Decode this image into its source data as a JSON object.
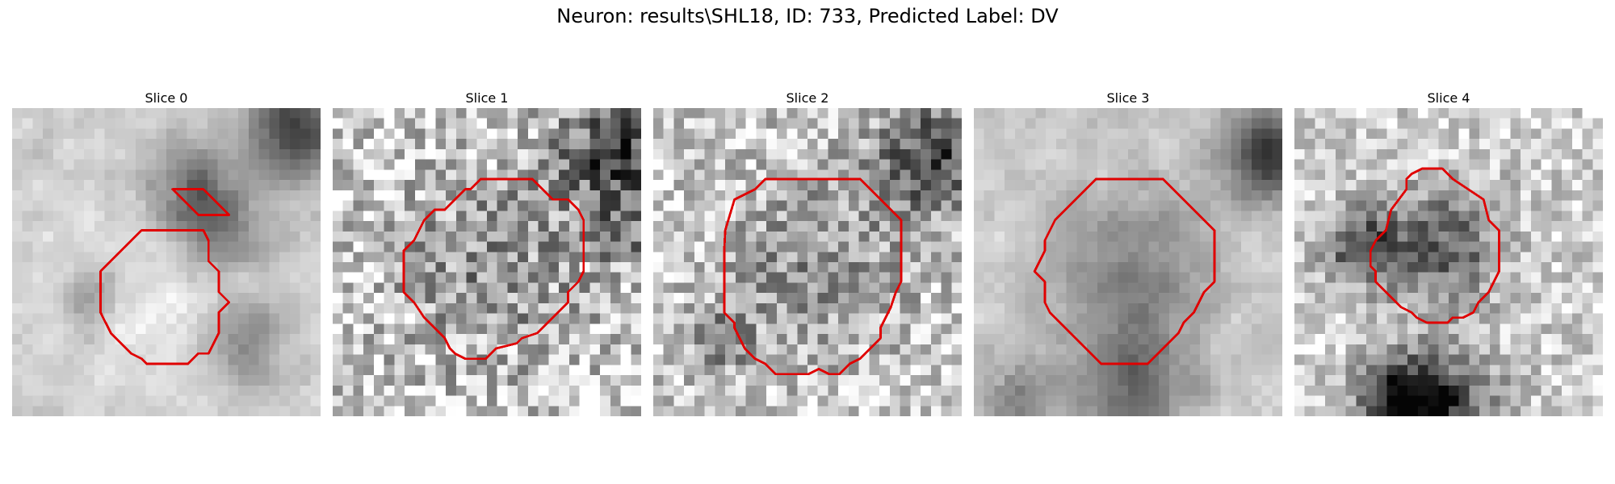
{
  "figure": {
    "title": "Neuron: results\\SHL18, ID: 733, Predicted Label: DV"
  },
  "slices": [
    {
      "title": "Slice 0",
      "seed": 11,
      "blur": 1.4
    },
    {
      "title": "Slice 1",
      "seed": 23,
      "blur": 0.6
    },
    {
      "title": "Slice 2",
      "seed": 37,
      "blur": 0.7
    },
    {
      "title": "Slice 3",
      "seed": 53,
      "blur": 1.3
    },
    {
      "title": "Slice 4",
      "seed": 71,
      "blur": 0.9
    }
  ],
  "colors": {
    "contour": "#e00000",
    "background": "#ffffff"
  }
}
